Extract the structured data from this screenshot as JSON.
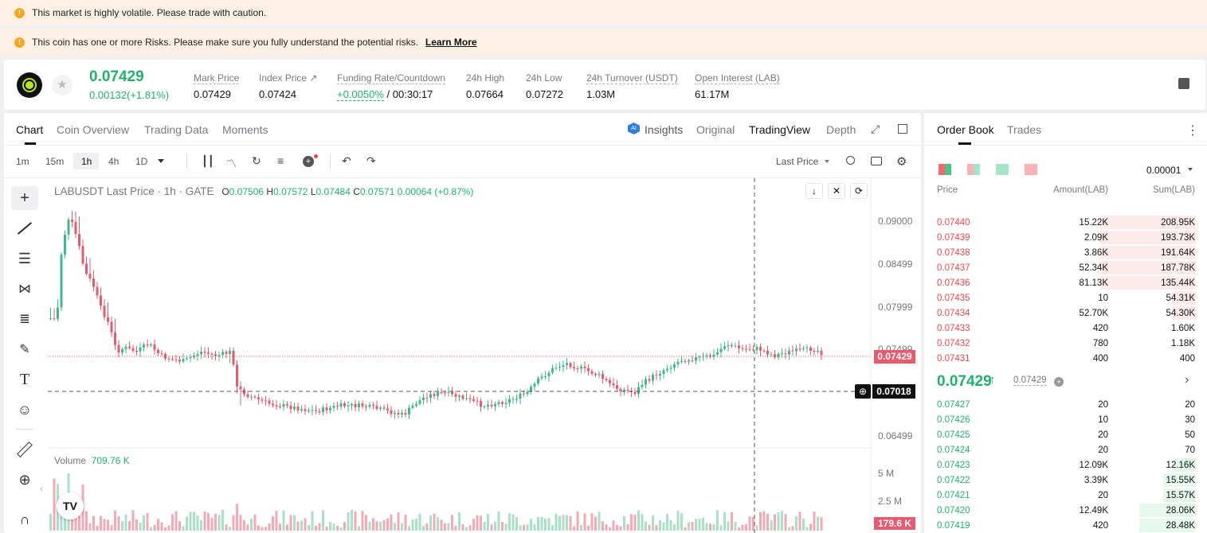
{
  "banners": {
    "volatile": "This market is highly volatile. Please trade with caution.",
    "risk": "This coin has one or more Risks. Please make sure you fully understand the potential risks.",
    "learn_more": "Learn More"
  },
  "ticker": {
    "price": "0.07429",
    "change": "0.00132(+1.81%)",
    "stats": [
      {
        "label": "Mark Price",
        "value": "0.07429"
      },
      {
        "label": "Index Price",
        "value": "0.07424"
      },
      {
        "label": "Funding Rate/Countdown",
        "value_green": "+0.0050%",
        "value": "/ 00:30:17"
      },
      {
        "label": "24h High",
        "value": "0.07664"
      },
      {
        "label": "24h Low",
        "value": "0.07272"
      },
      {
        "label": "24h Turnover (USDT)",
        "value": "1.03M"
      },
      {
        "label": "Open Interest (LAB)",
        "value": "61.17M"
      }
    ]
  },
  "chart_tabs": {
    "chart": "Chart",
    "overview": "Coin Overview",
    "trading": "Trading Data",
    "moments": "Moments"
  },
  "view_tabs": {
    "insights": "Insights",
    "original": "Original",
    "tradingview": "TradingView",
    "depth": "Depth"
  },
  "intervals": [
    "1m",
    "15m",
    "1h",
    "4h",
    "1D"
  ],
  "last_price_select": "Last Price",
  "legend": {
    "symbol": "LABUSDT Last Price · 1h · GATE",
    "o_lbl": "O",
    "o": "0.07506",
    "h_lbl": "H",
    "h": "0.07572",
    "l_lbl": "L",
    "l": "0.07484",
    "c_lbl": "C",
    "c": "0.07571",
    "chg": "0.00064 (+0.87%)"
  },
  "volume": {
    "label": "Volume",
    "value": "709.76 K"
  },
  "price_axis": [
    "0.09000",
    "0.08499",
    "0.07999",
    "0.07499",
    "0.06499"
  ],
  "volume_axis": [
    "5 M",
    "2.5 M"
  ],
  "price_tags": {
    "last": "0.07429",
    "cross": "0.07018",
    "vol": "179.6 K"
  },
  "order_book": {
    "tab_book": "Order Book",
    "tab_trades": "Trades",
    "precision": "0.00001",
    "headers": {
      "price": "Price",
      "amount": "Amount(LAB)",
      "sum": "Sum(LAB)"
    },
    "asks": [
      {
        "price": "0.07440",
        "amount": "15.22K",
        "sum": "208.95K",
        "depth": 0.59
      },
      {
        "price": "0.07439",
        "amount": "2.09K",
        "sum": "193.73K",
        "depth": 0.59
      },
      {
        "price": "0.07438",
        "amount": "3.86K",
        "sum": "191.64K",
        "depth": 0.59
      },
      {
        "price": "0.07437",
        "amount": "52.34K",
        "sum": "187.78K",
        "depth": 0.59
      },
      {
        "price": "0.07436",
        "amount": "81.13K",
        "sum": "135.44K",
        "depth": 0.59
      },
      {
        "price": "0.07435",
        "amount": "10",
        "sum": "54.31K",
        "depth": 0.15
      },
      {
        "price": "0.07434",
        "amount": "52.70K",
        "sum": "54.30K",
        "depth": 0.15
      },
      {
        "price": "0.07433",
        "amount": "420",
        "sum": "1.60K",
        "depth": 0
      },
      {
        "price": "0.07432",
        "amount": "780",
        "sum": "1.18K",
        "depth": 0
      },
      {
        "price": "0.07431",
        "amount": "400",
        "sum": "400",
        "depth": 0
      }
    ],
    "mid": {
      "price": "0.07429",
      "mark": "0.07429"
    },
    "bids": [
      {
        "price": "0.07427",
        "amount": "20",
        "sum": "20",
        "depth": 0
      },
      {
        "price": "0.07426",
        "amount": "10",
        "sum": "30",
        "depth": 0
      },
      {
        "price": "0.07425",
        "amount": "20",
        "sum": "50",
        "depth": 0
      },
      {
        "price": "0.07424",
        "amount": "20",
        "sum": "70",
        "depth": 0
      },
      {
        "price": "0.07423",
        "amount": "12.09K",
        "sum": "12.16K",
        "depth": 0.15
      },
      {
        "price": "0.07422",
        "amount": "3.39K",
        "sum": "15.55K",
        "depth": 0.2
      },
      {
        "price": "0.07421",
        "amount": "20",
        "sum": "15.57K",
        "depth": 0.2
      },
      {
        "price": "0.07420",
        "amount": "12.49K",
        "sum": "28.06K",
        "depth": 0.35
      },
      {
        "price": "0.07419",
        "amount": "420",
        "sum": "28.48K",
        "depth": 0.35
      }
    ]
  },
  "colors": {
    "green": "#20b26c",
    "red": "#ef454a",
    "up_candle": "#3dbb8a",
    "down_candle": "#e85a6e"
  }
}
